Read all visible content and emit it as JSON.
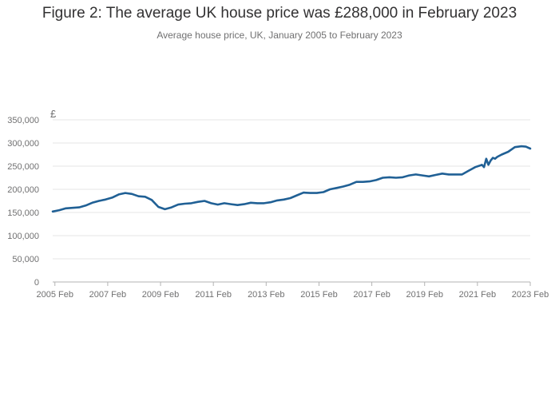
{
  "chart_data": {
    "type": "line",
    "title": "Figure 2: The average UK house price was £288,000 in February 2023",
    "subtitle": "Average house price, UK, January 2005 to February 2023",
    "ylabel": "£",
    "xlabel": "",
    "ylim": [
      0,
      350000
    ],
    "xlim": [
      "2005-01",
      "2023-02"
    ],
    "yticks": [
      0,
      50000,
      100000,
      150000,
      200000,
      250000,
      300000,
      350000
    ],
    "ytick_labels": [
      "0",
      "50,000",
      "100,000",
      "150,000",
      "200,000",
      "250,000",
      "300,000",
      "350,000"
    ],
    "xtick_labels": [
      "2005 Feb",
      "2007 Feb",
      "2009 Feb",
      "2011 Feb",
      "2013 Feb",
      "2015 Feb",
      "2017 Feb",
      "2019 Feb",
      "2021 Feb",
      "2023 Feb"
    ],
    "xtick_dates": [
      "2005-02",
      "2007-02",
      "2009-02",
      "2011-02",
      "2013-02",
      "2015-02",
      "2017-02",
      "2019-02",
      "2021-02",
      "2023-02"
    ],
    "grid": true,
    "color": "#206095",
    "series": [
      {
        "name": "",
        "x": [
          "2005-01",
          "2005-04",
          "2005-07",
          "2005-10",
          "2006-01",
          "2006-04",
          "2006-07",
          "2006-10",
          "2007-01",
          "2007-04",
          "2007-07",
          "2007-10",
          "2008-01",
          "2008-04",
          "2008-07",
          "2008-10",
          "2009-01",
          "2009-04",
          "2009-07",
          "2009-10",
          "2010-01",
          "2010-04",
          "2010-07",
          "2010-10",
          "2011-01",
          "2011-04",
          "2011-07",
          "2011-10",
          "2012-01",
          "2012-04",
          "2012-07",
          "2012-10",
          "2013-01",
          "2013-04",
          "2013-07",
          "2013-10",
          "2014-01",
          "2014-04",
          "2014-07",
          "2014-10",
          "2015-01",
          "2015-04",
          "2015-07",
          "2015-10",
          "2016-01",
          "2016-04",
          "2016-07",
          "2016-10",
          "2017-01",
          "2017-04",
          "2017-07",
          "2017-10",
          "2018-01",
          "2018-04",
          "2018-07",
          "2018-10",
          "2019-01",
          "2019-04",
          "2019-07",
          "2019-10",
          "2020-01",
          "2020-04",
          "2020-07",
          "2020-10",
          "2021-01",
          "2021-03",
          "2021-04",
          "2021-05",
          "2021-06",
          "2021-07",
          "2021-08",
          "2021-09",
          "2021-10",
          "2021-11",
          "2022-01",
          "2022-04",
          "2022-07",
          "2022-10",
          "2022-12",
          "2023-02"
        ],
        "y": [
          152000,
          155000,
          159000,
          160000,
          161000,
          165000,
          171000,
          175000,
          178000,
          182000,
          189000,
          192000,
          190000,
          185000,
          184000,
          177000,
          162000,
          157000,
          161000,
          167000,
          169000,
          170000,
          173000,
          175000,
          170000,
          167000,
          170000,
          168000,
          166000,
          168000,
          171000,
          170000,
          170000,
          172000,
          176000,
          178000,
          181000,
          187000,
          193000,
          192000,
          192000,
          194000,
          200000,
          203000,
          206000,
          210000,
          216000,
          216000,
          217000,
          220000,
          225000,
          226000,
          225000,
          226000,
          230000,
          232000,
          230000,
          228000,
          231000,
          234000,
          232000,
          232000,
          232000,
          240000,
          248000,
          251000,
          253000,
          248000,
          266000,
          253000,
          262000,
          268000,
          266000,
          270000,
          275000,
          281000,
          291000,
          293000,
          292000,
          288000
        ]
      }
    ]
  }
}
